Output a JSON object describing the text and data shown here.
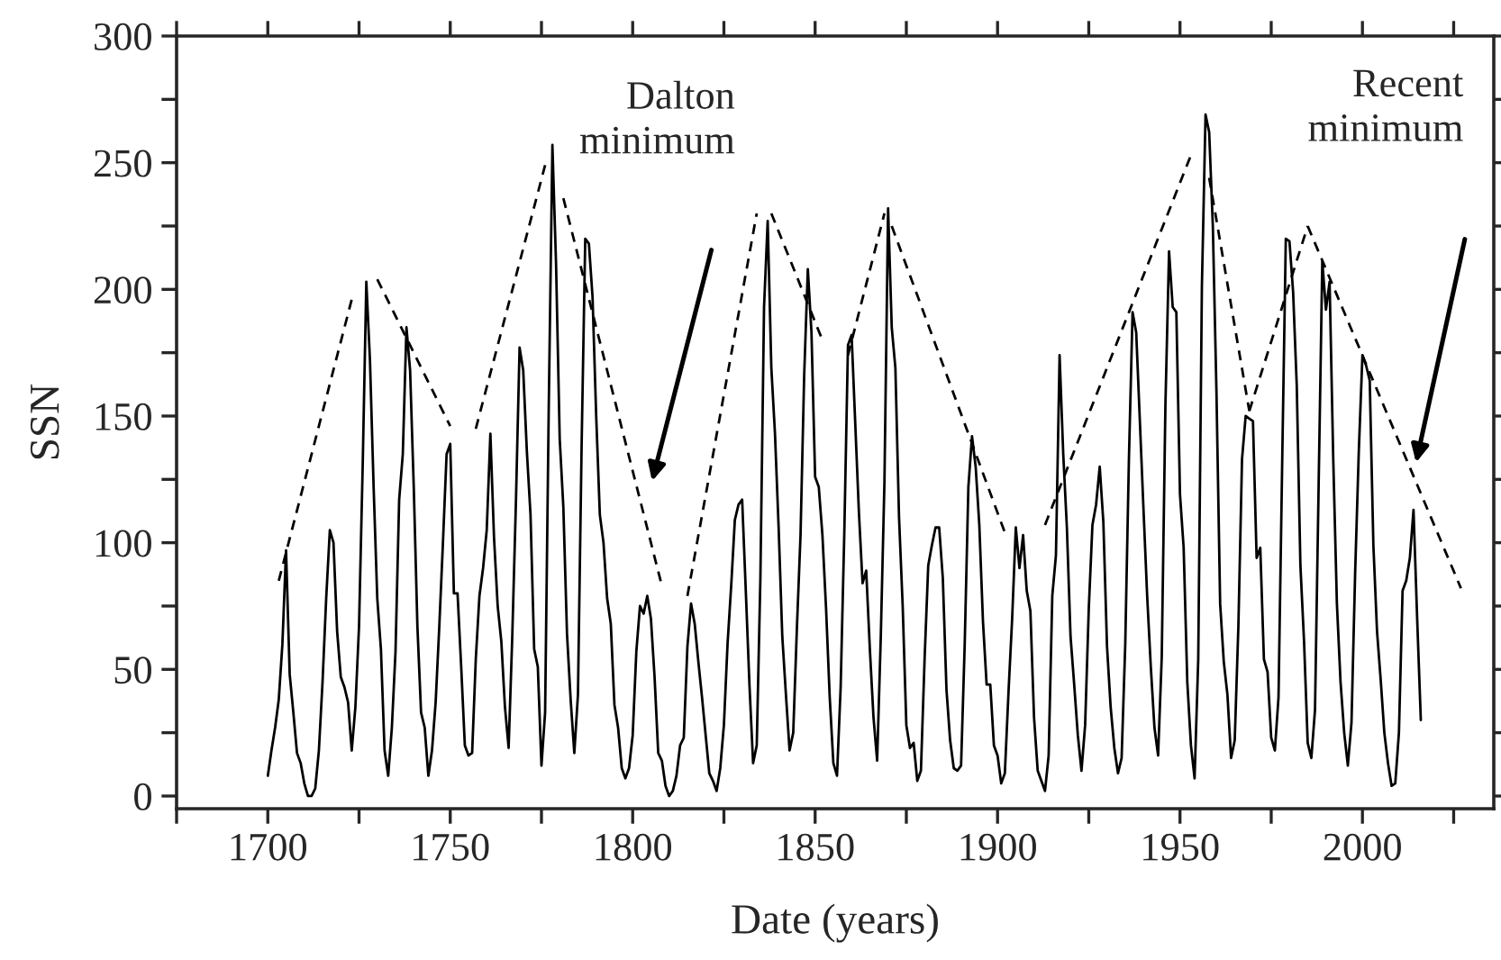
{
  "chart_data": {
    "type": "line",
    "xlabel": "Date (years)",
    "ylabel": "SSN",
    "xlim": [
      1675,
      2036
    ],
    "ylim": [
      -5,
      300
    ],
    "xticks": [
      {
        "value": 1675,
        "label": null
      },
      1700,
      {
        "value": 1725,
        "label": null
      },
      1750,
      {
        "value": 1775,
        "label": null
      },
      1800,
      {
        "value": 1825,
        "label": null
      },
      1850,
      {
        "value": 1875,
        "label": null
      },
      1900,
      {
        "value": 1925,
        "label": null
      },
      1950,
      {
        "value": 1975,
        "label": null
      },
      2000,
      {
        "value": 2025,
        "label": null
      }
    ],
    "yticks": [
      0,
      {
        "value": 25,
        "label": null
      },
      50,
      {
        "value": 75,
        "label": null
      },
      100,
      {
        "value": 125,
        "label": null
      },
      150,
      {
        "value": 175,
        "label": null
      },
      200,
      {
        "value": 225,
        "label": null
      },
      250,
      {
        "value": 275,
        "label": null
      },
      300
    ],
    "grid": false,
    "legend": false,
    "marker": "none",
    "annotations": [
      "Dalton\nminimum",
      "Recent\nminimum"
    ],
    "series": [
      {
        "color": "#000000",
        "line_style": "solid",
        "x": [
          1700,
          1701,
          1702,
          1703,
          1704,
          1705,
          1706,
          1707,
          1708,
          1709,
          1710,
          1711,
          1712,
          1713,
          1714,
          1715,
          1716,
          1717,
          1718,
          1719,
          1720,
          1721,
          1722,
          1723,
          1724,
          1725,
          1726,
          1727,
          1728,
          1729,
          1730,
          1731,
          1732,
          1733,
          1734,
          1735,
          1736,
          1737,
          1738,
          1739,
          1740,
          1741,
          1742,
          1743,
          1744,
          1745,
          1746,
          1747,
          1748,
          1749,
          1750,
          1751,
          1752,
          1753,
          1754,
          1755,
          1756,
          1757,
          1758,
          1759,
          1760,
          1761,
          1762,
          1763,
          1764,
          1765,
          1766,
          1767,
          1768,
          1769,
          1770,
          1771,
          1772,
          1773,
          1774,
          1775,
          1776,
          1777,
          1778,
          1779,
          1780,
          1781,
          1782,
          1783,
          1784,
          1785,
          1786,
          1787,
          1788,
          1789,
          1790,
          1791,
          1792,
          1793,
          1794,
          1795,
          1796,
          1797,
          1798,
          1799,
          1800,
          1801,
          1802,
          1803,
          1804,
          1805,
          1806,
          1807,
          1808,
          1809,
          1810,
          1811,
          1812,
          1813,
          1814,
          1815,
          1816,
          1817,
          1818,
          1819,
          1820,
          1821,
          1822,
          1823,
          1824,
          1825,
          1826,
          1827,
          1828,
          1829,
          1830,
          1831,
          1832,
          1833,
          1834,
          1835,
          1836,
          1837,
          1838,
          1839,
          1840,
          1841,
          1842,
          1843,
          1844,
          1845,
          1846,
          1847,
          1848,
          1849,
          1850,
          1851,
          1852,
          1853,
          1854,
          1855,
          1856,
          1857,
          1858,
          1859,
          1860,
          1861,
          1862,
          1863,
          1864,
          1865,
          1866,
          1867,
          1868,
          1869,
          1870,
          1871,
          1872,
          1873,
          1874,
          1875,
          1876,
          1877,
          1878,
          1879,
          1880,
          1881,
          1882,
          1883,
          1884,
          1885,
          1886,
          1887,
          1888,
          1889,
          1890,
          1891,
          1892,
          1893,
          1894,
          1895,
          1896,
          1897,
          1898,
          1899,
          1900,
          1901,
          1902,
          1903,
          1904,
          1905,
          1906,
          1907,
          1908,
          1909,
          1910,
          1911,
          1912,
          1913,
          1914,
          1915,
          1916,
          1917,
          1918,
          1919,
          1920,
          1921,
          1922,
          1923,
          1924,
          1925,
          1926,
          1927,
          1928,
          1929,
          1930,
          1931,
          1932,
          1933,
          1934,
          1935,
          1936,
          1937,
          1938,
          1939,
          1940,
          1941,
          1942,
          1943,
          1944,
          1945,
          1946,
          1947,
          1948,
          1949,
          1950,
          1951,
          1952,
          1953,
          1954,
          1955,
          1956,
          1957,
          1958,
          1959,
          1960,
          1961,
          1962,
          1963,
          1964,
          1965,
          1966,
          1967,
          1968,
          1969,
          1970,
          1971,
          1972,
          1973,
          1974,
          1975,
          1976,
          1977,
          1978,
          1979,
          1980,
          1981,
          1982,
          1983,
          1984,
          1985,
          1986,
          1987,
          1988,
          1989,
          1990,
          1991,
          1992,
          1993,
          1994,
          1995,
          1996,
          1997,
          1998,
          1999,
          2000,
          2001,
          2002,
          2003,
          2004,
          2005,
          2006,
          2007,
          2008,
          2009,
          2010,
          2011,
          2012,
          2013,
          2014,
          2015,
          2016
        ],
        "values": [
          8,
          18,
          27,
          38,
          60,
          97,
          48,
          33,
          17,
          13,
          5,
          0,
          0,
          3,
          18,
          45,
          78,
          105,
          100,
          65,
          47,
          43,
          37,
          18,
          35,
          67,
          130,
          203,
          172,
          122,
          78,
          58,
          18,
          8,
          27,
          57,
          117,
          135,
          185,
          168,
          122,
          67,
          33,
          27,
          8,
          18,
          37,
          67,
          100,
          135,
          139,
          80,
          80,
          51,
          20,
          16,
          17,
          54,
          79,
          90,
          105,
          143,
          102,
          75,
          61,
          35,
          19,
          63,
          116,
          177,
          168,
          136,
          111,
          58,
          51,
          12,
          33,
          154,
          257,
          210,
          141,
          114,
          64,
          38,
          17,
          40,
          138,
          220,
          218,
          197,
          150,
          111,
          100,
          78,
          68,
          36,
          27,
          11,
          7,
          11,
          24,
          57,
          75,
          72,
          79,
          70,
          47,
          17,
          14,
          4,
          0,
          2,
          8,
          20,
          23,
          59,
          76,
          68,
          53,
          39,
          24,
          9,
          6,
          2,
          11,
          28,
          60,
          83,
          109,
          115,
          117,
          81,
          44,
          13,
          20,
          86,
          193,
          227,
          169,
          143,
          106,
          63,
          40,
          18,
          25,
          66,
          103,
          166,
          208,
          183,
          126,
          122,
          103,
          74,
          39,
          13,
          8,
          43,
          104,
          178,
          182,
          147,
          112,
          84,
          89,
          58,
          31,
          14,
          63,
          124,
          232,
          185,
          169,
          110,
          75,
          28,
          19,
          21,
          6,
          10,
          54,
          91,
          99,
          106,
          106,
          86,
          42,
          22,
          11,
          10,
          12,
          60,
          122,
          142,
          130,
          107,
          69,
          44,
          44,
          20,
          16,
          5,
          9,
          41,
          70,
          106,
          90,
          103,
          81,
          73,
          31,
          10,
          6,
          2,
          16,
          79,
          95,
          174,
          135,
          106,
          63,
          44,
          24,
          10,
          28,
          74,
          107,
          115,
          130,
          108,
          59,
          35,
          19,
          9,
          15,
          60,
          133,
          191,
          183,
          148,
          113,
          79,
          51,
          27,
          16,
          55,
          154,
          215,
          193,
          191,
          119,
          98,
          45,
          20,
          7,
          54,
          201,
          269,
          262,
          225,
          159,
          76,
          53,
          40,
          15,
          22,
          67,
          133,
          150,
          149,
          148,
          94,
          98,
          54,
          49,
          23,
          18,
          39,
          131,
          220,
          219,
          199,
          162,
          91,
          61,
          21,
          15,
          34,
          123,
          211,
          192,
          203,
          133,
          76,
          45,
          25,
          12,
          29,
          88,
          136,
          174,
          170,
          164,
          99,
          65,
          46,
          25,
          13,
          4,
          5,
          25,
          81,
          85,
          94,
          113,
          70,
          30
        ]
      },
      {
        "color": "#000000",
        "line_style": "dashed",
        "x": [
          1703,
          1723
        ],
        "values": [
          85,
          196
        ]
      },
      {
        "color": "#000000",
        "line_style": "dashed",
        "x": [
          1730,
          1750
        ],
        "values": [
          204,
          146
        ]
      },
      {
        "color": "#000000",
        "line_style": "dashed",
        "x": [
          1757,
          1776
        ],
        "values": [
          145,
          249
        ]
      },
      {
        "color": "#000000",
        "line_style": "dashed",
        "x": [
          1781,
          1808
        ],
        "values": [
          236,
          83
        ]
      },
      {
        "color": "#000000",
        "line_style": "dashed",
        "x": [
          1815,
          1834
        ],
        "values": [
          79,
          230
        ]
      },
      {
        "color": "#000000",
        "line_style": "dashed",
        "x": [
          1838,
          1852
        ],
        "values": [
          230,
          180
        ]
      },
      {
        "color": "#000000",
        "line_style": "dashed",
        "x": [
          1859,
          1869
        ],
        "values": [
          174,
          230
        ]
      },
      {
        "color": "#000000",
        "line_style": "dashed",
        "x": [
          1871,
          1902
        ],
        "values": [
          225,
          104
        ]
      },
      {
        "color": "#000000",
        "line_style": "dashed",
        "x": [
          1913,
          1953
        ],
        "values": [
          107,
          253
        ]
      },
      {
        "color": "#000000",
        "line_style": "dashed",
        "x": [
          1958,
          1969
        ],
        "values": [
          244,
          152
        ]
      },
      {
        "color": "#000000",
        "line_style": "dashed",
        "x": [
          1969,
          1985
        ],
        "values": [
          152,
          225
        ]
      },
      {
        "color": "#000000",
        "line_style": "dashed",
        "x": [
          1985,
          2027
        ],
        "values": [
          225,
          82
        ]
      }
    ]
  }
}
